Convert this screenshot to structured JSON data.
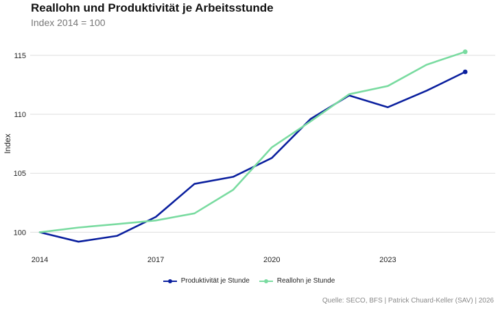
{
  "title": "Reallohn und Produktivität je Arbeitsstunde",
  "subtitle": "Index 2014 = 100",
  "caption": "Quelle: SECO, BFS | Patrick Chuard-Keller (SAV) | 2026",
  "chart_data": {
    "type": "line",
    "ylabel": "Index",
    "xlabel": "",
    "x": [
      2014,
      2015,
      2016,
      2017,
      2018,
      2019,
      2020,
      2021,
      2022,
      2023,
      2024,
      2025
    ],
    "xticks": [
      2014,
      2017,
      2020,
      2023
    ],
    "yticks": [
      100,
      105,
      110,
      115
    ],
    "xlim": [
      2014,
      2025.6
    ],
    "ylim": [
      98.4,
      116.5
    ],
    "grid": true,
    "legend_position": "bottom",
    "series": [
      {
        "name": "Produktivität je Stunde",
        "color": "#0a1f9e",
        "values": [
          100.0,
          99.2,
          99.7,
          101.3,
          104.1,
          104.7,
          106.3,
          109.6,
          111.6,
          110.6,
          112.0,
          113.6
        ]
      },
      {
        "name": "Reallohn je Stunde",
        "color": "#79dba0",
        "values": [
          100.0,
          100.4,
          100.7,
          101.0,
          101.6,
          103.6,
          107.2,
          109.4,
          111.7,
          112.4,
          114.2,
          115.3
        ]
      }
    ]
  }
}
